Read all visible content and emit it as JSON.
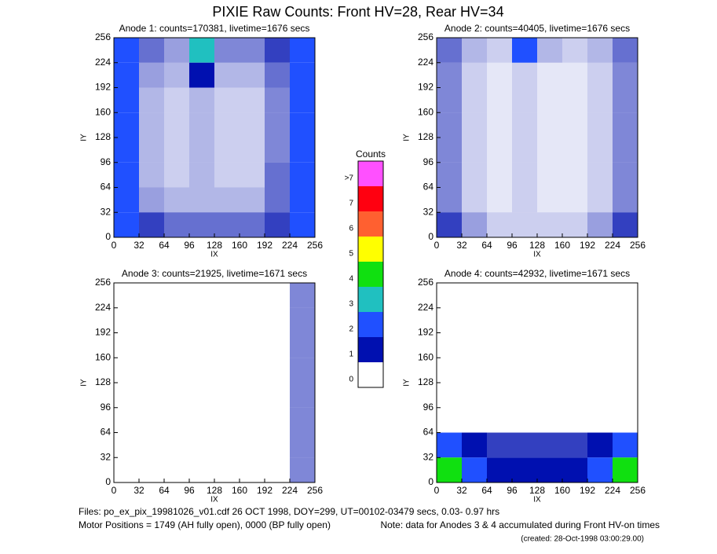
{
  "title": "PIXIE Raw Counts:  Front HV=28, Rear HV=34",
  "colorbar": {
    "title": "Counts",
    "ticks": [
      0,
      1,
      2,
      3,
      4,
      5,
      6,
      7,
      {
        "value": 8,
        "label": ">7"
      }
    ],
    "colors": [
      "#ffffff",
      "#0010b0",
      "#2050ff",
      "#20c0c0",
      "#10e010",
      "#ffff00",
      "#ff6030",
      "#ff0010",
      "#ff50ff"
    ]
  },
  "footer": {
    "files": "Files: po_ex_pix_19981026_v01.cdf    26 OCT 1998, DOY=299, UT=00102-03479 secs,  0.03- 0.97 hrs",
    "motor": "Motor Positions = 1749 (AH fully open), 0000 (BP fully open)",
    "note": "Note: data for Anodes 3 & 4 accumulated during Front HV-on times",
    "created": "(created: 28-Oct-1998 03:00:29.00)"
  },
  "chart_data": [
    {
      "type": "heatmap",
      "title": "Anode 1: counts=170381, livetime=1676 secs",
      "xlabel": "IX",
      "ylabel": "IY",
      "xlim": [
        0,
        256
      ],
      "ylim": [
        0,
        256
      ],
      "xticks": [
        0,
        32,
        64,
        96,
        128,
        160,
        192,
        224,
        256
      ],
      "yticks": [
        0,
        32,
        64,
        96,
        128,
        160,
        192,
        224,
        256
      ],
      "values": [
        [
          1.5,
          0.6,
          0.4,
          3,
          0.5,
          0.5,
          0.8,
          1.8
        ],
        [
          1.5,
          0.4,
          0.3,
          1,
          0.3,
          0.3,
          0.6,
          1.6
        ],
        [
          1.4,
          0.3,
          0.2,
          0.3,
          0.2,
          0.2,
          0.5,
          1.4
        ],
        [
          1.5,
          0.3,
          0.2,
          0.3,
          0.2,
          0.2,
          0.5,
          1.5
        ],
        [
          1.5,
          0.3,
          0.2,
          0.3,
          0.2,
          0.2,
          0.5,
          1.5
        ],
        [
          1.4,
          0.3,
          0.2,
          0.3,
          0.2,
          0.2,
          0.6,
          1.6
        ],
        [
          1.5,
          0.4,
          0.3,
          0.3,
          0.3,
          0.3,
          0.6,
          1.6
        ],
        [
          1.6,
          0.8,
          0.6,
          0.6,
          0.6,
          0.6,
          0.8,
          1.8
        ]
      ]
    },
    {
      "type": "heatmap",
      "title": "Anode 2: counts=40405, livetime=1676 secs",
      "xlabel": "IX",
      "ylabel": "IY",
      "xlim": [
        0,
        256
      ],
      "ylim": [
        0,
        256
      ],
      "xticks": [
        0,
        32,
        64,
        96,
        128,
        160,
        192,
        224,
        256
      ],
      "yticks": [
        0,
        32,
        64,
        96,
        128,
        160,
        192,
        224,
        256
      ],
      "values": [
        [
          0.6,
          0.3,
          0.2,
          2,
          0.3,
          0.2,
          0.3,
          0.6
        ],
        [
          0.5,
          0.2,
          0.1,
          0.2,
          0.1,
          0.1,
          0.2,
          0.5
        ],
        [
          0.5,
          0.2,
          0.1,
          0.2,
          0.1,
          0.1,
          0.2,
          0.5
        ],
        [
          0.5,
          0.2,
          0.1,
          0.2,
          0.1,
          0.1,
          0.2,
          0.5
        ],
        [
          0.5,
          0.2,
          0.1,
          0.2,
          0.1,
          0.1,
          0.2,
          0.5
        ],
        [
          0.5,
          0.2,
          0.1,
          0.2,
          0.1,
          0.1,
          0.2,
          0.5
        ],
        [
          0.5,
          0.2,
          0.1,
          0.2,
          0.1,
          0.1,
          0.2,
          0.5
        ],
        [
          0.8,
          0.4,
          0.2,
          0.2,
          0.2,
          0.2,
          0.4,
          0.8
        ]
      ]
    },
    {
      "type": "heatmap",
      "title": "Anode 3: counts=21925, livetime=1671 secs",
      "xlabel": "IX",
      "ylabel": "IY",
      "xlim": [
        0,
        256
      ],
      "ylim": [
        0,
        256
      ],
      "xticks": [
        0,
        32,
        64,
        96,
        128,
        160,
        192,
        224,
        256
      ],
      "yticks": [
        0,
        32,
        64,
        96,
        128,
        160,
        192,
        224,
        256
      ],
      "values": [
        [
          0,
          0,
          0,
          0,
          0,
          0,
          0,
          0.5
        ],
        [
          0,
          0,
          0,
          0,
          0,
          0,
          0,
          0.5
        ],
        [
          0,
          0,
          0,
          0,
          0,
          0,
          0,
          0.5
        ],
        [
          0,
          0,
          0,
          0,
          0,
          0,
          0,
          0.5
        ],
        [
          0,
          0,
          0,
          0,
          0,
          0,
          0,
          0.5
        ],
        [
          0,
          0,
          0,
          0,
          0,
          0,
          0,
          0.5
        ],
        [
          0,
          0,
          0,
          0,
          0,
          0,
          0,
          0.5
        ],
        [
          0,
          0,
          0,
          0,
          0,
          0,
          0,
          0.5
        ]
      ]
    },
    {
      "type": "heatmap",
      "title": "Anode 4: counts=42932, livetime=1671 secs",
      "xlabel": "IX",
      "ylabel": "IY",
      "xlim": [
        0,
        256
      ],
      "ylim": [
        0,
        256
      ],
      "xticks": [
        0,
        32,
        64,
        96,
        128,
        160,
        192,
        224,
        256
      ],
      "yticks": [
        0,
        32,
        64,
        96,
        128,
        160,
        192,
        224,
        256
      ],
      "values": [
        [
          0,
          0,
          0,
          0,
          0,
          0,
          0,
          0
        ],
        [
          0,
          0,
          0,
          0,
          0,
          0,
          0,
          0
        ],
        [
          0,
          0,
          0,
          0,
          0,
          0,
          0,
          0
        ],
        [
          0,
          0,
          0,
          0,
          0,
          0,
          0,
          0
        ],
        [
          0,
          0,
          0,
          0,
          0,
          0,
          0,
          0
        ],
        [
          0,
          0,
          0,
          0,
          0,
          0,
          0,
          0
        ],
        [
          2,
          1,
          0.8,
          0.8,
          0.8,
          0.8,
          1,
          2
        ],
        [
          4,
          1.5,
          1,
          1,
          1,
          1,
          1.5,
          4
        ]
      ]
    }
  ]
}
